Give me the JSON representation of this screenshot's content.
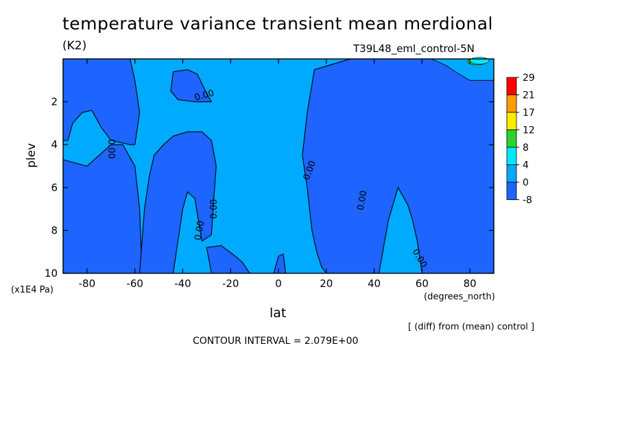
{
  "chart_data": {
    "type": "heatmap",
    "title": "temperature variance transient mean merdional",
    "units_label": "(K2)",
    "run_label": "T39L48_eml_control-5N",
    "xlabel": "lat",
    "x_units": "(degrees_north)",
    "ylabel": "plev",
    "y_units": "(x1E4 Pa)",
    "xlim": [
      -90,
      90
    ],
    "ylim": [
      10,
      0
    ],
    "x_ticks": [
      -80,
      -60,
      -40,
      -20,
      0,
      20,
      40,
      60,
      80
    ],
    "x_tick_labels": [
      "-80",
      "-60",
      "-40",
      "-20",
      "0",
      "20",
      "40",
      "60",
      "80"
    ],
    "y_ticks": [
      2,
      4,
      6,
      8,
      10
    ],
    "y_tick_labels": [
      "2",
      "4",
      "6",
      "8",
      "10"
    ],
    "contour_labels": [
      {
        "text": "0.00",
        "lat": -31,
        "plev": 1.7,
        "rotate": -15
      },
      {
        "text": "0.00",
        "lat": -70,
        "plev": 4.2,
        "rotate": 90
      },
      {
        "text": "0.00",
        "lat": -27,
        "plev": 7.0,
        "rotate": -90
      },
      {
        "text": "0.00",
        "lat": -33,
        "plev": 8.0,
        "rotate": -80
      },
      {
        "text": "0.00",
        "lat": 13,
        "plev": 5.2,
        "rotate": -70
      },
      {
        "text": "0.00",
        "lat": 35,
        "plev": 6.6,
        "rotate": -80
      },
      {
        "text": "0.00",
        "lat": 59,
        "plev": 9.3,
        "rotate": 60
      }
    ],
    "colorbar": {
      "levels": [
        "29",
        "21",
        "17",
        "12",
        "8",
        "4",
        "0",
        "-8"
      ],
      "colors": [
        "#ff0000",
        "#ff9d00",
        "#ffeb00",
        "#2dd22d",
        "#00e8ff",
        "#00aaff",
        "#1e64ff"
      ]
    },
    "regions": {
      "background_color": "#00aaff",
      "negative_color": "#1e64ff",
      "negative_regions": [
        [
          [
            -90,
            0
          ],
          [
            -62,
            0
          ],
          [
            -60,
            1.0
          ],
          [
            -58,
            2.5
          ],
          [
            -60,
            4.0
          ],
          [
            -62,
            4.0
          ],
          [
            -70,
            3.8
          ],
          [
            -74,
            3.2
          ],
          [
            -78,
            2.4
          ],
          [
            -82,
            2.5
          ],
          [
            -86,
            3.0
          ],
          [
            -88,
            3.8
          ],
          [
            -90,
            3.8
          ]
        ],
        [
          [
            -90,
            4.7
          ],
          [
            -80,
            5.0
          ],
          [
            -70,
            4.0
          ],
          [
            -65,
            4.0
          ],
          [
            -60,
            5.0
          ],
          [
            -58,
            7.0
          ],
          [
            -57,
            10.0
          ],
          [
            -90,
            10.0
          ]
        ],
        [
          [
            -38,
            0.5
          ],
          [
            -34,
            0.7
          ],
          [
            -30,
            1.6
          ],
          [
            -28,
            2.0
          ],
          [
            -35,
            2.0
          ],
          [
            -42,
            1.9
          ],
          [
            -45,
            1.5
          ],
          [
            -44,
            0.6
          ]
        ],
        [
          [
            -58,
            10.0
          ],
          [
            -56,
            7.0
          ],
          [
            -54,
            5.5
          ],
          [
            -52,
            4.5
          ],
          [
            -48,
            4.0
          ],
          [
            -44,
            3.6
          ],
          [
            -38,
            3.4
          ],
          [
            -32,
            3.4
          ],
          [
            -28,
            3.8
          ],
          [
            -26,
            5.0
          ],
          [
            -27,
            6.5
          ],
          [
            -28,
            8.2
          ],
          [
            -32,
            8.5
          ],
          [
            -35,
            6.5
          ],
          [
            -38,
            6.2
          ],
          [
            -40,
            7.0
          ],
          [
            -42,
            8.5
          ],
          [
            -44,
            10.0
          ]
        ],
        [
          [
            -28,
            10.0
          ],
          [
            -30,
            8.8
          ],
          [
            -24,
            8.7
          ],
          [
            -18,
            9.2
          ],
          [
            -15,
            9.5
          ],
          [
            -12,
            10.0
          ]
        ],
        [
          [
            -2,
            10.0
          ],
          [
            0,
            9.2
          ],
          [
            2,
            9.1
          ],
          [
            3,
            10.0
          ]
        ],
        [
          [
            15,
            0.5
          ],
          [
            30,
            0
          ],
          [
            90,
            0
          ],
          [
            90,
            10.0
          ],
          [
            80,
            10.0
          ],
          [
            60,
            10.0
          ],
          [
            58,
            8.5
          ],
          [
            56,
            7.5
          ],
          [
            54,
            6.8
          ],
          [
            50,
            6.0
          ],
          [
            46,
            7.5
          ],
          [
            42,
            10.0
          ],
          [
            20,
            10.0
          ],
          [
            18,
            9.7
          ],
          [
            16,
            9.0
          ],
          [
            14,
            8.0
          ],
          [
            12,
            6.0
          ],
          [
            10,
            4.5
          ],
          [
            12,
            2.5
          ],
          [
            14,
            1.2
          ]
        ]
      ],
      "positive_regions": [
        [
          [
            64,
            0
          ],
          [
            90,
            0
          ],
          [
            90,
            1.0
          ],
          [
            80,
            1.0
          ],
          [
            74,
            0.6
          ],
          [
            70,
            0.3
          ]
        ]
      ],
      "positive_color": "#00aaff",
      "peak_colors": [
        {
          "lat": 83,
          "plev": 0.12,
          "color": "#2dd22d"
        },
        {
          "lat": 84,
          "plev": 0.08,
          "color": "#00e8ff"
        }
      ]
    }
  },
  "labels": {
    "contour_interval": "CONTOUR INTERVAL = 2.079E+00",
    "diff_note": "[ (diff) from (mean) control ]"
  }
}
